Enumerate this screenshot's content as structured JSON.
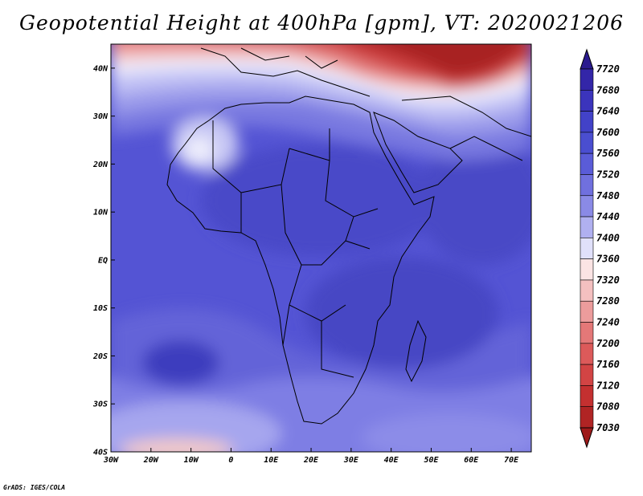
{
  "title": "Geopotential Height at 400hPa [gpm], VT: 2020021206",
  "credit": "GrADS: IGES/COLA",
  "map": {
    "lon_range": [
      -30,
      75
    ],
    "lat_range": [
      -40,
      45
    ],
    "lat_ticks": [
      {
        "value": 40,
        "label": "40N"
      },
      {
        "value": 30,
        "label": "30N"
      },
      {
        "value": 20,
        "label": "20N"
      },
      {
        "value": 10,
        "label": "10N"
      },
      {
        "value": 0,
        "label": "EQ"
      },
      {
        "value": -10,
        "label": "10S"
      },
      {
        "value": -20,
        "label": "20S"
      },
      {
        "value": -30,
        "label": "30S"
      },
      {
        "value": -40,
        "label": "40S"
      }
    ],
    "lon_ticks": [
      {
        "value": -30,
        "label": "30W"
      },
      {
        "value": -20,
        "label": "20W"
      },
      {
        "value": -10,
        "label": "10W"
      },
      {
        "value": 0,
        "label": "0"
      },
      {
        "value": 10,
        "label": "10E"
      },
      {
        "value": 20,
        "label": "20E"
      },
      {
        "value": 30,
        "label": "30E"
      },
      {
        "value": 40,
        "label": "40E"
      },
      {
        "value": 50,
        "label": "50E"
      },
      {
        "value": 60,
        "label": "60E"
      },
      {
        "value": 70,
        "label": "70E"
      }
    ]
  },
  "colorbar": {
    "levels": [
      "7720",
      "7680",
      "7640",
      "7600",
      "7560",
      "7520",
      "7480",
      "7440",
      "7400",
      "7360",
      "7320",
      "7280",
      "7240",
      "7200",
      "7160",
      "7120",
      "7080",
      "7030"
    ],
    "colors": [
      "#2a1a8e",
      "#3326a8",
      "#3b34bc",
      "#4242c8",
      "#4a4ed0",
      "#5a5cd8",
      "#7070de",
      "#8a8ae6",
      "#b0b0f0",
      "#e0e0fa",
      "#fbe4e4",
      "#f4c0c0",
      "#ec9c9c",
      "#e47878",
      "#dc5a5a",
      "#d24444",
      "#c43030",
      "#b02424",
      "#9e1a1a"
    ]
  }
}
